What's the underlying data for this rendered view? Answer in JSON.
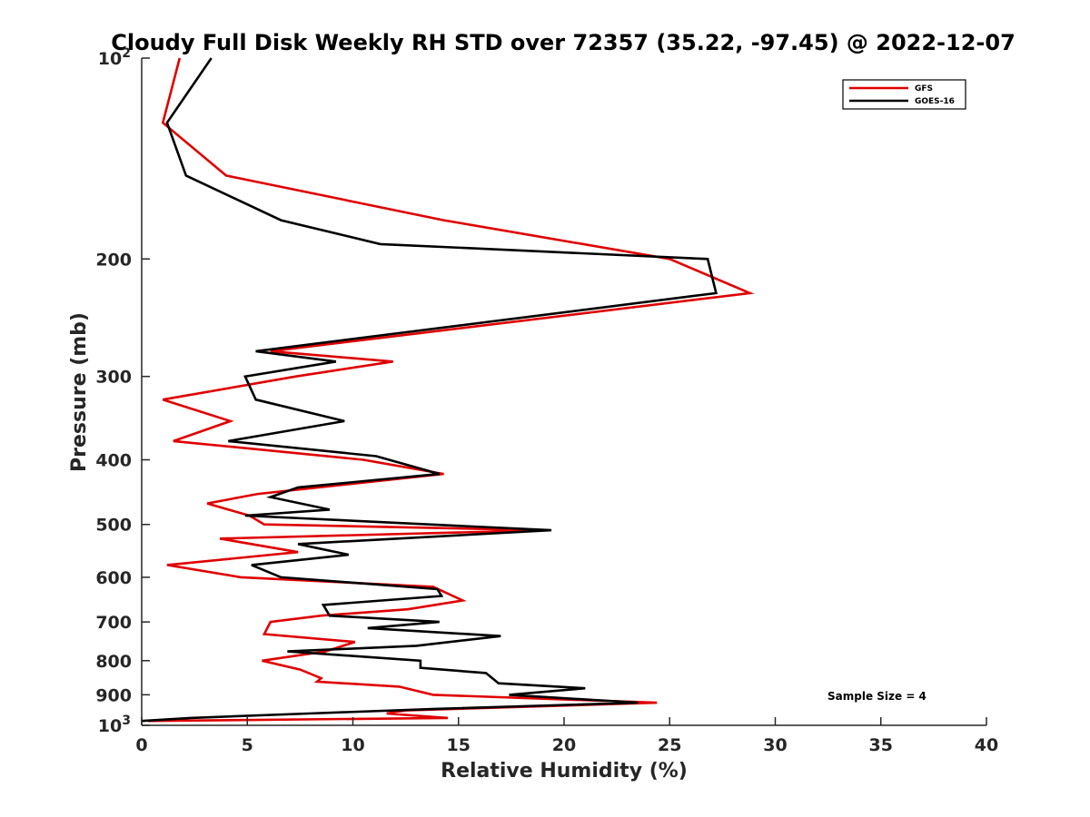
{
  "chart_data": {
    "type": "line",
    "title": "Cloudy Full Disk Weekly RH STD over 72357 (35.22, -97.45) @ 2022-12-07",
    "xlabel": "Relative Humidity (%)",
    "ylabel": "Pressure (mb)",
    "xlim": [
      0,
      40
    ],
    "ylim": [
      100,
      1000
    ],
    "y_scale": "log",
    "y_reversed": true,
    "grid": false,
    "legend_position": "top-right",
    "x_ticks": [
      0,
      5,
      10,
      15,
      20,
      25,
      30,
      35,
      40
    ],
    "y_ticks": [
      {
        "value": 100,
        "label": "10",
        "sup": "2"
      },
      {
        "value": 200,
        "label": "200"
      },
      {
        "value": 300,
        "label": "300"
      },
      {
        "value": 400,
        "label": "400"
      },
      {
        "value": 500,
        "label": "500"
      },
      {
        "value": 600,
        "label": "600"
      },
      {
        "value": 700,
        "label": "700"
      },
      {
        "value": 800,
        "label": "800"
      },
      {
        "value": 900,
        "label": "900"
      },
      {
        "value": 1000,
        "label": "10",
        "sup": "3"
      }
    ],
    "annotation": "Sample Size = 4",
    "series": [
      {
        "name": "GFS",
        "color": "#e00000",
        "points": [
          [
            1.8,
            100
          ],
          [
            1.0,
            125
          ],
          [
            4.0,
            150
          ],
          [
            14.3,
            175
          ],
          [
            25.0,
            200
          ],
          [
            28.8,
            225
          ],
          [
            6.1,
            275
          ],
          [
            11.9,
            285
          ],
          [
            7.3,
            300
          ],
          [
            1.0,
            325
          ],
          [
            4.2,
            350
          ],
          [
            1.5,
            375
          ],
          [
            10.5,
            400
          ],
          [
            14.3,
            420
          ],
          [
            5.5,
            450
          ],
          [
            3.1,
            465
          ],
          [
            5.1,
            485
          ],
          [
            5.8,
            500
          ],
          [
            19.2,
            510
          ],
          [
            3.7,
            525
          ],
          [
            7.4,
            550
          ],
          [
            1.2,
            575
          ],
          [
            4.7,
            600
          ],
          [
            13.8,
            620
          ],
          [
            15.2,
            650
          ],
          [
            12.6,
            670
          ],
          [
            8.5,
            685
          ],
          [
            6.1,
            700
          ],
          [
            5.8,
            730
          ],
          [
            10.1,
            750
          ],
          [
            8.7,
            775
          ],
          [
            5.7,
            800
          ],
          [
            7.5,
            825
          ],
          [
            8.5,
            850
          ],
          [
            8.3,
            860
          ],
          [
            12.2,
            875
          ],
          [
            13.8,
            900
          ],
          [
            24.4,
            925
          ],
          [
            12.5,
            950
          ],
          [
            11.6,
            960
          ],
          [
            14.5,
            975
          ],
          [
            0.3,
            985
          ]
        ]
      },
      {
        "name": "GOES-16",
        "color": "#000000",
        "points": [
          [
            3.3,
            100
          ],
          [
            1.2,
            125
          ],
          [
            2.1,
            150
          ],
          [
            6.6,
            175
          ],
          [
            11.3,
            190
          ],
          [
            26.8,
            200
          ],
          [
            27.2,
            225
          ],
          [
            5.4,
            275
          ],
          [
            9.2,
            285
          ],
          [
            4.9,
            300
          ],
          [
            5.4,
            325
          ],
          [
            9.6,
            350
          ],
          [
            4.1,
            375
          ],
          [
            11.1,
            395
          ],
          [
            14.1,
            420
          ],
          [
            7.4,
            440
          ],
          [
            6.1,
            455
          ],
          [
            8.9,
            475
          ],
          [
            4.9,
            485
          ],
          [
            19.4,
            510
          ],
          [
            7.4,
            535
          ],
          [
            9.8,
            555
          ],
          [
            5.2,
            575
          ],
          [
            6.6,
            600
          ],
          [
            14.0,
            625
          ],
          [
            14.2,
            640
          ],
          [
            8.6,
            660
          ],
          [
            8.9,
            685
          ],
          [
            14.1,
            700
          ],
          [
            10.7,
            715
          ],
          [
            17.0,
            735
          ],
          [
            13.0,
            760
          ],
          [
            6.9,
            775
          ],
          [
            13.2,
            800
          ],
          [
            13.2,
            820
          ],
          [
            16.3,
            835
          ],
          [
            16.9,
            865
          ],
          [
            21.0,
            880
          ],
          [
            17.4,
            900
          ],
          [
            23.5,
            925
          ],
          [
            13.9,
            945
          ],
          [
            7.9,
            960
          ],
          [
            2.3,
            975
          ],
          [
            0.0,
            985
          ]
        ]
      }
    ]
  }
}
